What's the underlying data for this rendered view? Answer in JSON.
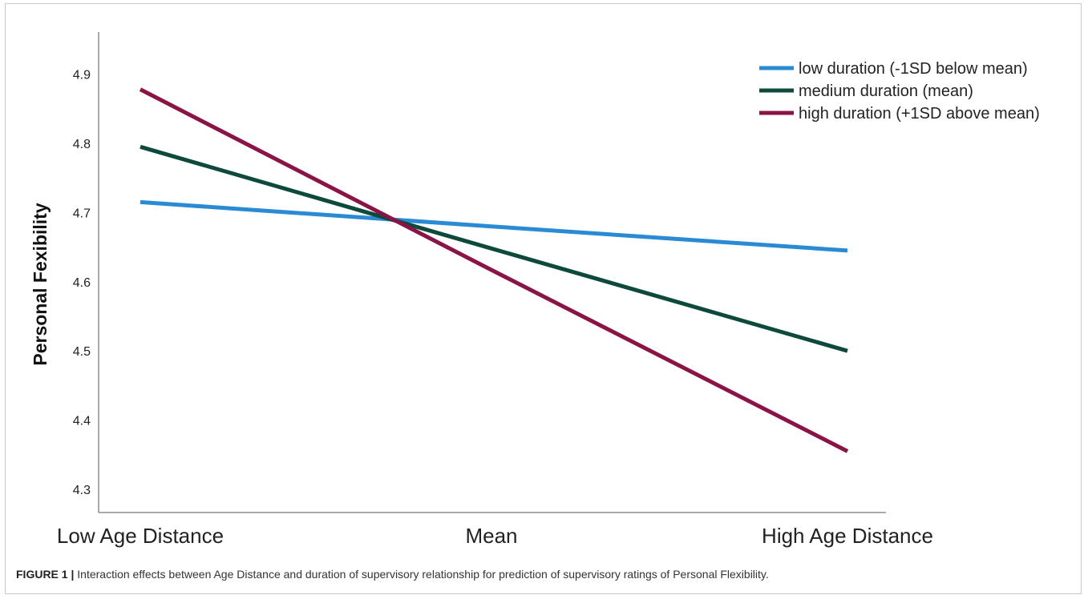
{
  "chart_data": {
    "type": "line",
    "title": "",
    "xlabel": "",
    "ylabel": "Personal Fexibility",
    "categories": [
      "Low Age Distance",
      "Mean",
      "High Age Distance"
    ],
    "y_ticks": [
      "4.3",
      "4.4",
      "4.5",
      "4.6",
      "4.7",
      "4.8",
      "4.9"
    ],
    "ylim": [
      4.27,
      4.94
    ],
    "grid": false,
    "legend_position": "top-right",
    "series": [
      {
        "name": "low duration (-1SD below mean)",
        "color": "#2a8ad4",
        "values": [
          4.715,
          4.68,
          4.645
        ]
      },
      {
        "name": "medium duration (mean)",
        "color": "#0e4a3c",
        "values": [
          4.795,
          4.648,
          4.5
        ]
      },
      {
        "name": "high duration (+1SD above mean)",
        "color": "#8a1446",
        "values": [
          4.878,
          4.617,
          4.355
        ]
      }
    ]
  },
  "caption": {
    "label": "FIGURE 1",
    "separator": "|",
    "text": "Interaction effects between Age Distance and duration of supervisory relationship for prediction of supervisory ratings of Personal Flexibility."
  }
}
